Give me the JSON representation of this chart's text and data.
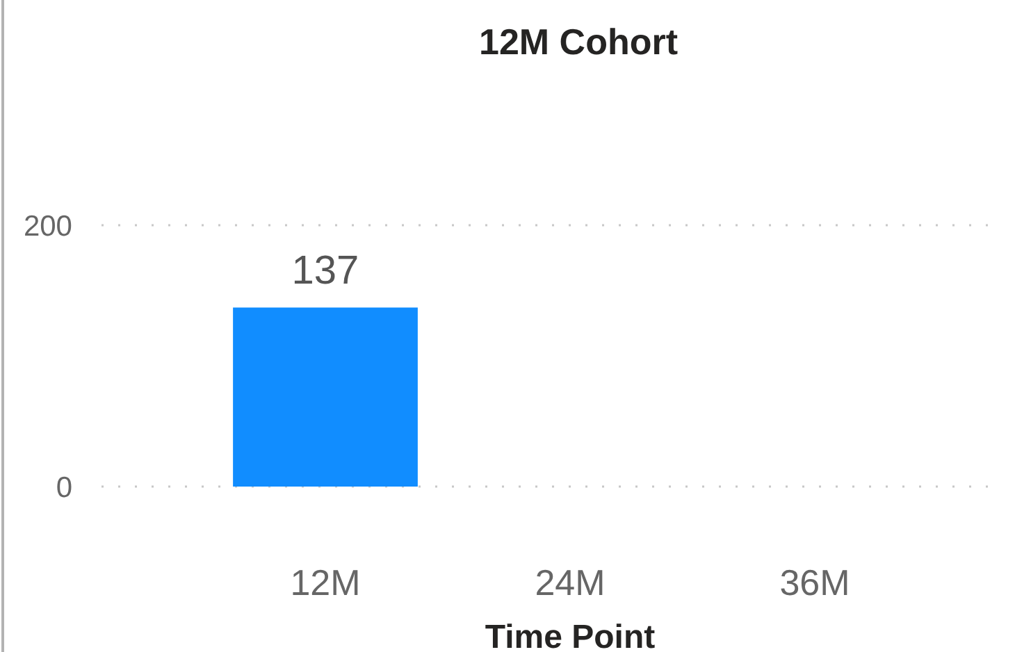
{
  "chart_data": {
    "type": "bar",
    "title": "12M Cohort",
    "xlabel": "Time Point",
    "categories": [
      "12M",
      "24M",
      "36M"
    ],
    "values": [
      137,
      null,
      null
    ],
    "color": "#118dff",
    "ylim": [
      0,
      200
    ],
    "yticks": [
      0,
      200
    ],
    "grid": "y",
    "data_labels": true
  }
}
